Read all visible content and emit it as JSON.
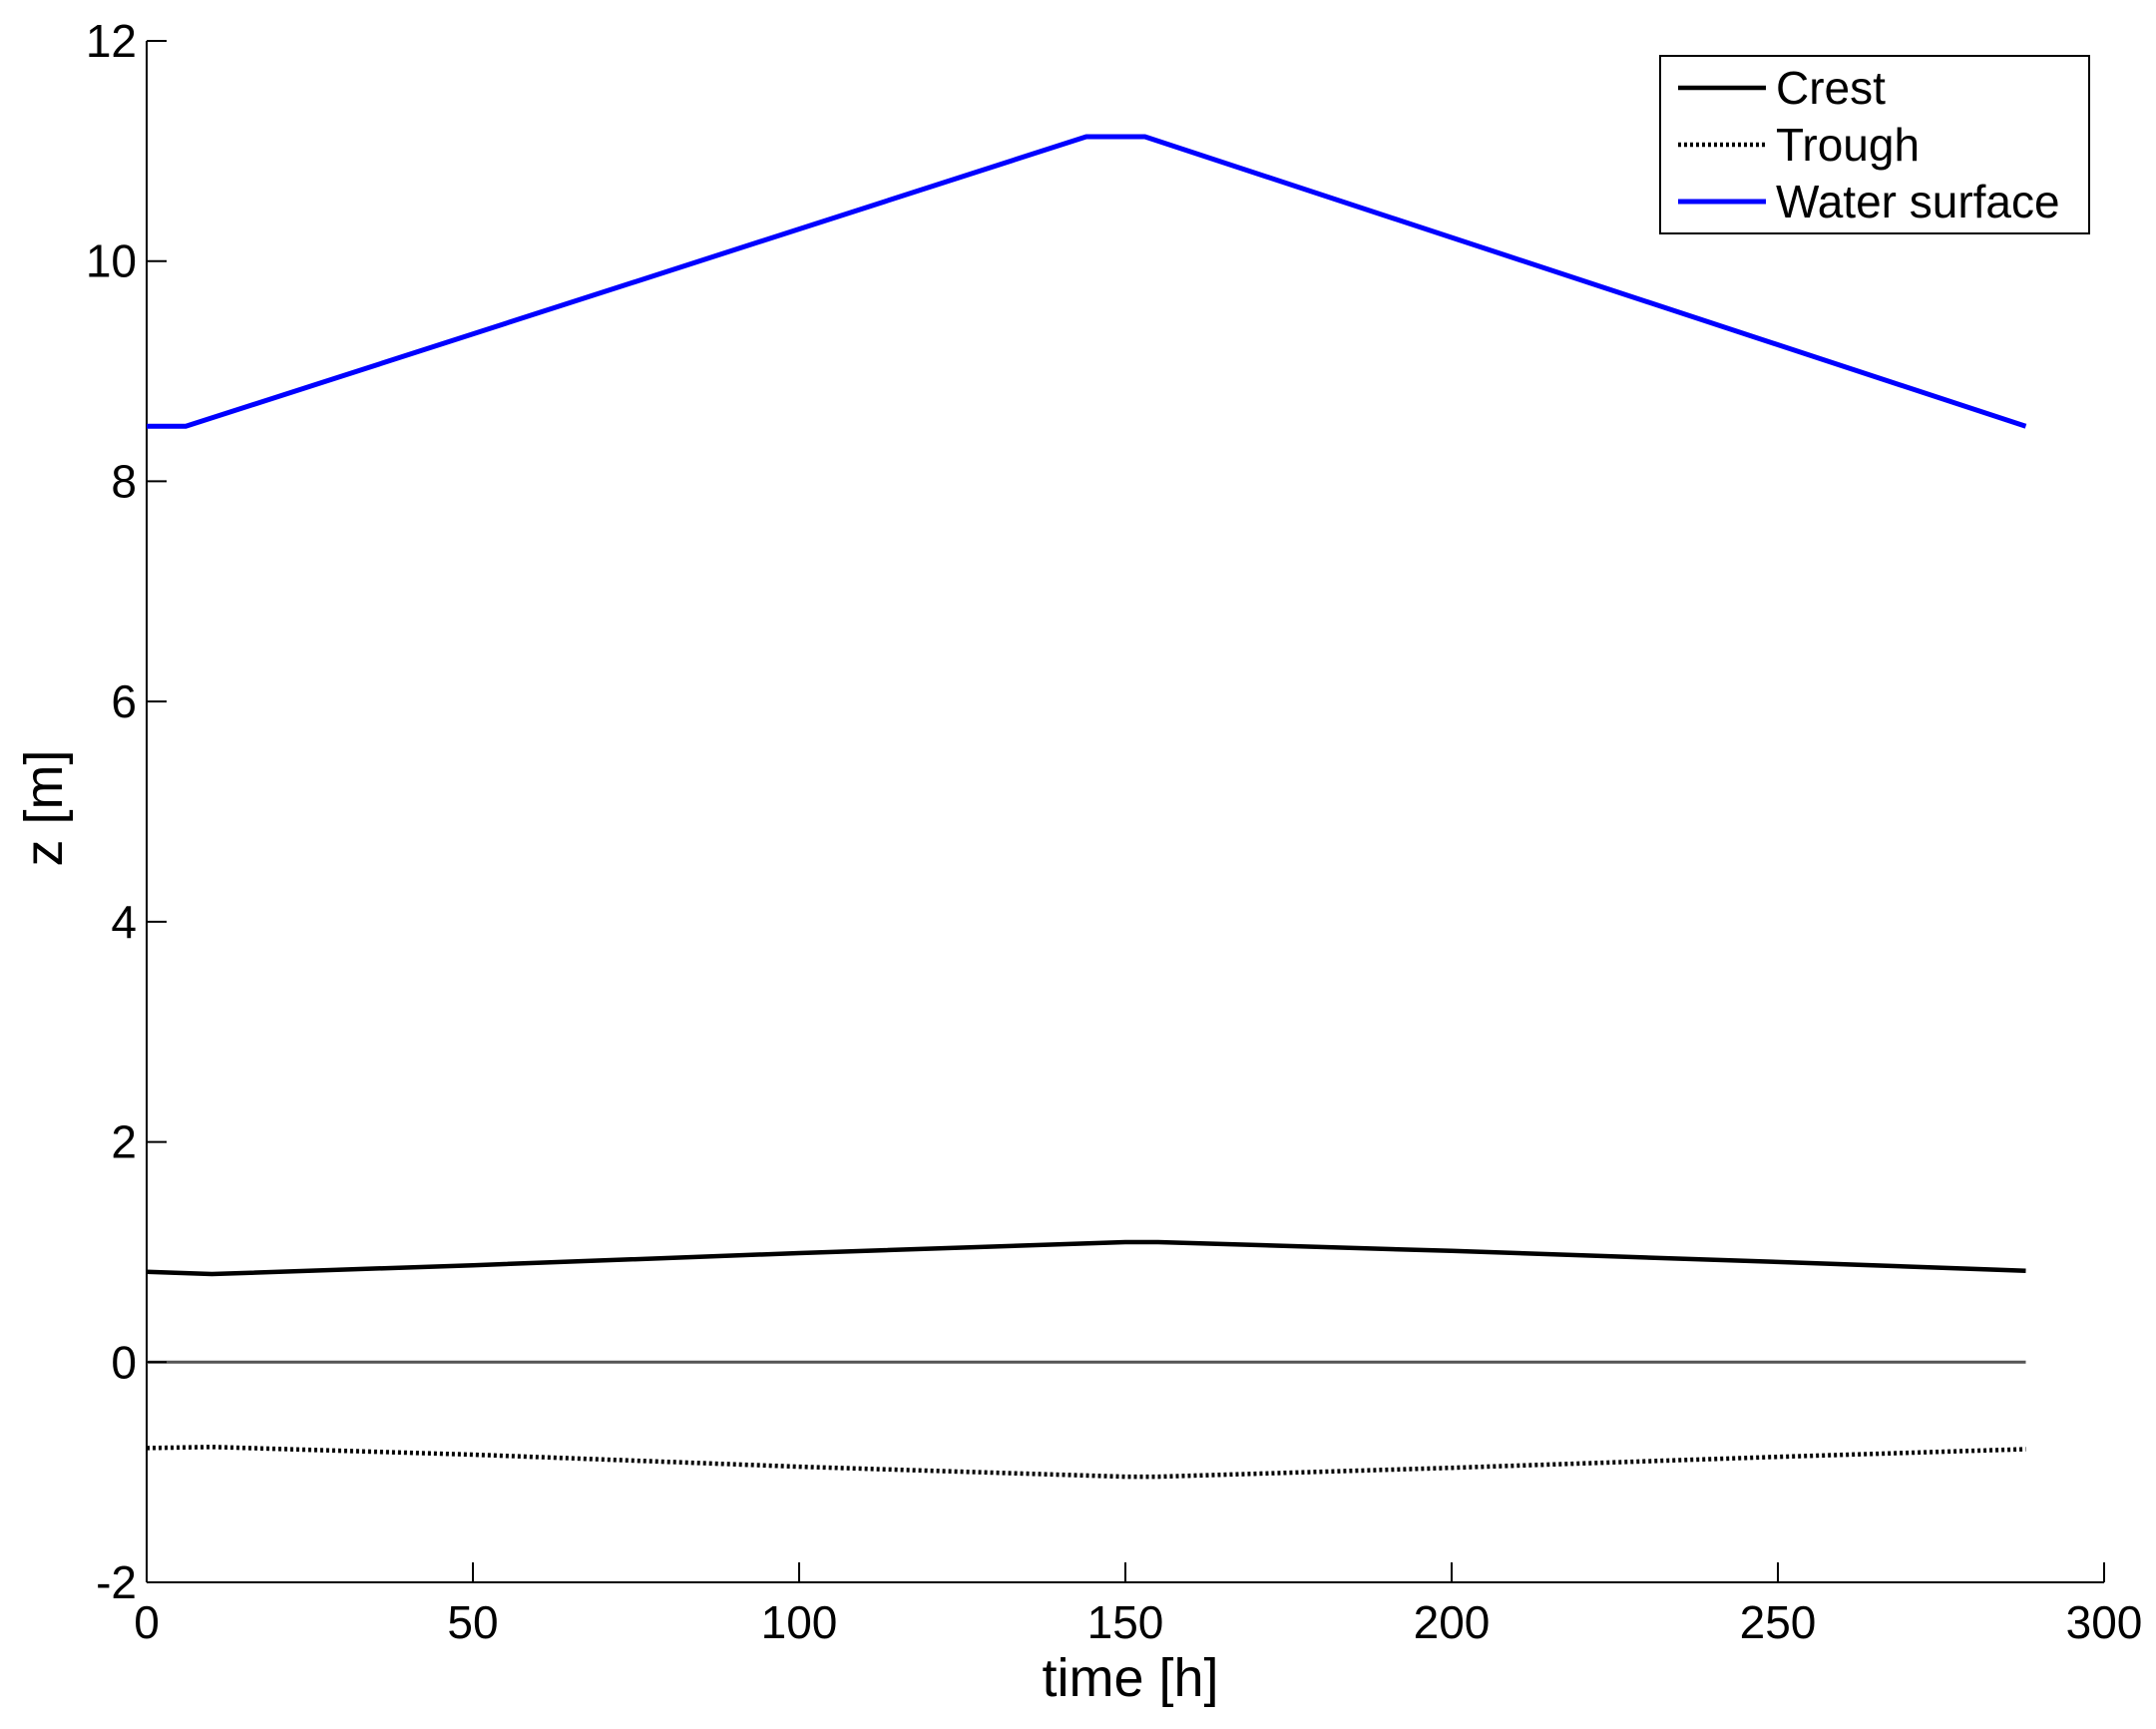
{
  "chart_data": {
    "type": "line",
    "title": "",
    "xlabel": "time [h]",
    "ylabel": "z [m]",
    "xlim": [
      0,
      300
    ],
    "ylim": [
      -2,
      12
    ],
    "xticks": [
      0,
      50,
      100,
      150,
      200,
      250,
      300
    ],
    "yticks": [
      -2,
      0,
      2,
      4,
      6,
      8,
      10,
      12
    ],
    "grid": false,
    "legend": "top-right",
    "series": [
      {
        "name": "Crest",
        "color": "#000000",
        "style": "solid",
        "x": [
          0,
          10,
          50,
          100,
          150,
          155,
          200,
          250,
          288
        ],
        "y": [
          0.82,
          0.8,
          0.88,
          0.99,
          1.09,
          1.09,
          1.01,
          0.91,
          0.83
        ]
      },
      {
        "name": "Trough",
        "color": "#000000",
        "style": "dotted",
        "x": [
          0,
          10,
          50,
          100,
          150,
          155,
          200,
          250,
          288
        ],
        "y": [
          -0.78,
          -0.77,
          -0.84,
          -0.95,
          -1.04,
          -1.04,
          -0.96,
          -0.86,
          -0.79
        ]
      },
      {
        "name": "Water surface",
        "color": "#0000ff",
        "style": "solid",
        "x": [
          0,
          6,
          144,
          153,
          288
        ],
        "y": [
          8.5,
          8.5,
          11.13,
          11.13,
          8.5
        ]
      },
      {
        "name": "",
        "color": "#555555",
        "style": "solid",
        "x": [
          0,
          288
        ],
        "y": [
          0,
          0
        ]
      }
    ]
  }
}
